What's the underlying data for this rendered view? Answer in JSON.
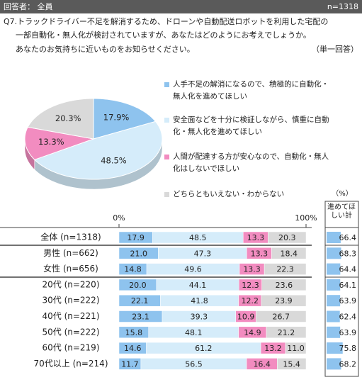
{
  "header": {
    "respondents": "回答者： 全員",
    "n": "n=1318"
  },
  "question": {
    "lines": [
      "Q7.トラックドライバー不足を解消するため、ドローンや自動配送ロボットを利用した宅配の",
      "一部自動化・無人化が検討されていますが、あなたはどのようにお考えでしょうか。",
      "あなたのお気持ちに近いものをお知らせください。"
    ],
    "answer_type": "（単一回答）"
  },
  "chart_data": [
    {
      "type": "pie",
      "categories": [
        "人手不足の解消になるので、積極的に自動化・無人化を進めてほしい",
        "安全面などを十分に検証しながら、慎重に自動化・無人化を進めてほしい",
        "人間が配達する方が安心なので、自動化・無人化はしないでほしい",
        "どちらともいえない・わからない"
      ],
      "values": [
        17.9,
        48.5,
        13.3,
        20.3
      ],
      "value_labels": [
        "17.9%",
        "48.5%",
        "13.3%",
        "20.3%"
      ],
      "colors": [
        "#8ec3ee",
        "#d5ecfa",
        "#f28cc0",
        "#d9d9d9"
      ]
    },
    {
      "type": "bar",
      "orientation": "horizontal",
      "stacked": true,
      "categories": [
        "全体 (n=1318)",
        "男性 (n=662)",
        "女性 (n=656)",
        "20代 (n=220)",
        "30代 (n=222)",
        "40代 (n=221)",
        "50代 (n=222)",
        "60代 (n=219)",
        "70代以上 (n=214)"
      ],
      "xlim": [
        0,
        100
      ],
      "xticks": [
        {
          "value": 0,
          "label": "0%"
        },
        {
          "value": 100,
          "label": "100%"
        }
      ],
      "series": [
        {
          "color": "#8ec3ee",
          "values": [
            17.9,
            21.0,
            14.8,
            20.0,
            22.1,
            23.1,
            15.8,
            14.6,
            11.7
          ],
          "value_labels": [
            "17.9",
            "21.0",
            "14.8",
            "20.0",
            "22.1",
            "23.1",
            "15.8",
            "14.6",
            "11.7"
          ]
        },
        {
          "color": "#d5ecfa",
          "values": [
            48.5,
            47.3,
            49.6,
            44.1,
            41.8,
            39.3,
            48.1,
            61.2,
            56.5
          ],
          "value_labels": [
            "48.5",
            "47.3",
            "49.6",
            "44.1",
            "41.8",
            "39.3",
            "48.1",
            "61.2",
            "56.5"
          ]
        },
        {
          "color": "#f28cc0",
          "values": [
            13.3,
            13.3,
            13.3,
            12.3,
            12.2,
            10.9,
            14.9,
            13.2,
            16.4
          ],
          "value_labels": [
            "13.3",
            "13.3",
            "13.3",
            "12.3",
            "12.2",
            "10.9",
            "14.9",
            "13.2",
            "16.4"
          ]
        },
        {
          "color": "#d9d9d9",
          "values": [
            20.3,
            18.4,
            22.3,
            23.6,
            23.9,
            26.7,
            21.2,
            11.0,
            15.4
          ],
          "value_labels": [
            "20.3",
            "18.4",
            "22.3",
            "23.6",
            "23.9",
            "26.7",
            "21.2",
            "11.0",
            "15.4"
          ]
        }
      ],
      "total": {
        "title": "進めてほしい計",
        "unit": "（%）",
        "color": "#8ec3ee",
        "values": [
          66.4,
          68.3,
          64.4,
          64.1,
          63.9,
          62.4,
          63.9,
          75.8,
          68.2
        ]
      }
    }
  ]
}
